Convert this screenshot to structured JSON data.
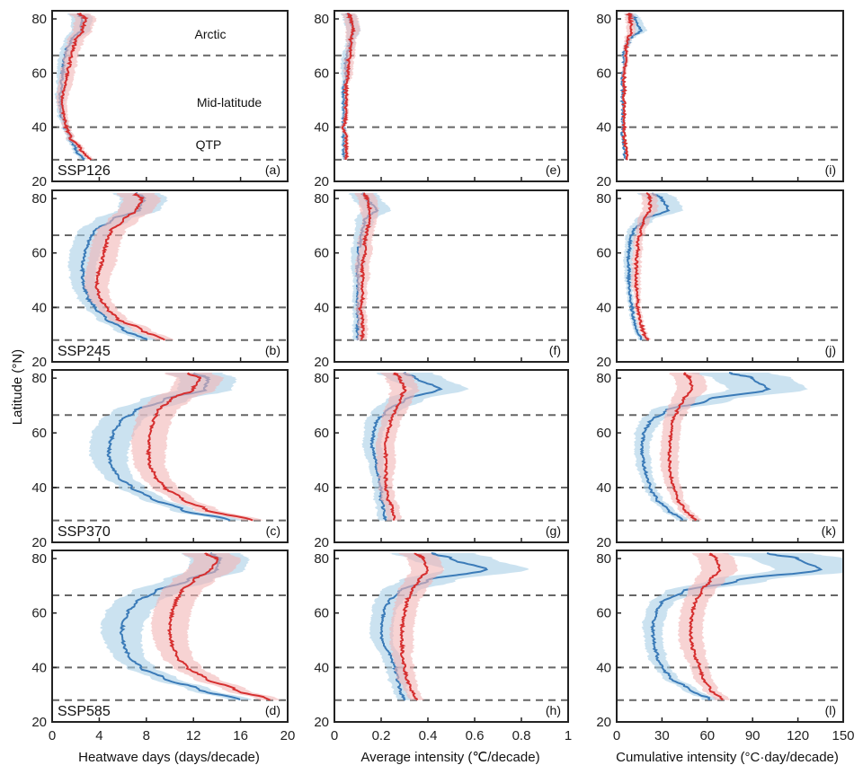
{
  "chart_data": {
    "type": "line",
    "ylabel": "Latitude (°N)",
    "ylim": [
      20,
      83
    ],
    "yticks": [
      20,
      40,
      60,
      80
    ],
    "reference_lines_lat": [
      28,
      40,
      66.5
    ],
    "region_labels": [
      "Arctic",
      "Mid-latitude",
      "QTP"
    ],
    "colors": {
      "red_line": "#d62f2f",
      "red_band": "#f2b6b6",
      "blue_line": "#3b7bb8",
      "blue_band": "#a9cfe6",
      "ref_line": "#666666"
    },
    "columns": [
      {
        "xlabel": "Heatwave days (days/decade)",
        "xlim": [
          0,
          20
        ],
        "xticks": [
          "0",
          "4",
          "8",
          "12",
          "16",
          "20"
        ],
        "tick_values": [
          0,
          4,
          8,
          12,
          16,
          20
        ]
      },
      {
        "xlabel": "Average intensity (℃/decade)",
        "xlim": [
          0,
          1
        ],
        "xticks": [
          "0",
          "0.2",
          "0.4",
          "0.6",
          "0.8",
          "1"
        ],
        "tick_values": [
          0,
          0.2,
          0.4,
          0.6,
          0.8,
          1
        ]
      },
      {
        "xlabel": "Cumulative intensity (°C·day/decade)",
        "xlim": [
          0,
          150
        ],
        "xticks": [
          "0",
          "30",
          "60",
          "90",
          "120",
          "150"
        ],
        "tick_values": [
          0,
          30,
          60,
          90,
          120,
          150
        ]
      }
    ],
    "rows": [
      "SSP126",
      "SSP245",
      "SSP370",
      "SSP585"
    ],
    "panel_labels": [
      [
        "(a)",
        "(e)",
        "(i)"
      ],
      [
        "(b)",
        "(f)",
        "(j)"
      ],
      [
        "(c)",
        "(g)",
        "(k)"
      ],
      [
        "(d)",
        "(h)",
        "(l)"
      ]
    ],
    "series": [
      {
        "scenario": "SSP126",
        "variable": "heatwave_days",
        "lat": [
          28,
          32,
          36,
          40,
          44,
          48,
          52,
          56,
          60,
          64,
          68,
          72,
          76,
          80,
          82
        ],
        "red": [
          3.2,
          2.4,
          1.6,
          1.2,
          1.0,
          0.8,
          0.9,
          1.1,
          1.3,
          1.5,
          1.7,
          2.0,
          2.6,
          2.8,
          2.4
        ],
        "red_spread": [
          0.3,
          0.3,
          0.3,
          0.3,
          0.3,
          0.4,
          0.5,
          0.6,
          0.6,
          0.6,
          0.6,
          0.7,
          0.8,
          0.9,
          0.9
        ],
        "blue": [
          2.6,
          2.0,
          1.5,
          1.1,
          0.8,
          0.7,
          0.7,
          0.8,
          0.9,
          1.0,
          1.2,
          1.6,
          2.4,
          2.6,
          2.2
        ],
        "blue_spread": [
          0.3,
          0.3,
          0.3,
          0.3,
          0.3,
          0.3,
          0.4,
          0.4,
          0.5,
          0.5,
          0.5,
          0.6,
          0.8,
          0.9,
          0.9
        ]
      },
      {
        "scenario": "SSP126",
        "variable": "average_intensity",
        "lat": [
          28,
          32,
          36,
          40,
          44,
          48,
          52,
          56,
          60,
          64,
          68,
          72,
          76,
          80,
          82
        ],
        "red": [
          0.05,
          0.05,
          0.05,
          0.04,
          0.05,
          0.05,
          0.05,
          0.05,
          0.06,
          0.06,
          0.07,
          0.07,
          0.08,
          0.07,
          0.06
        ],
        "red_spread": [
          0.01,
          0.01,
          0.01,
          0.01,
          0.01,
          0.01,
          0.01,
          0.01,
          0.02,
          0.02,
          0.02,
          0.02,
          0.03,
          0.03,
          0.03
        ],
        "blue": [
          0.04,
          0.04,
          0.04,
          0.04,
          0.04,
          0.04,
          0.04,
          0.04,
          0.05,
          0.05,
          0.06,
          0.07,
          0.08,
          0.07,
          0.06
        ],
        "blue_spread": [
          0.01,
          0.01,
          0.01,
          0.01,
          0.01,
          0.01,
          0.01,
          0.01,
          0.02,
          0.02,
          0.02,
          0.02,
          0.03,
          0.03,
          0.03
        ]
      },
      {
        "scenario": "SSP126",
        "variable": "cumulative_intensity",
        "lat": [
          28,
          32,
          36,
          40,
          44,
          48,
          52,
          56,
          60,
          64,
          68,
          72,
          76,
          80,
          82
        ],
        "red": [
          7,
          6,
          5,
          5,
          5,
          5,
          5,
          5,
          5,
          6,
          6,
          7,
          10,
          9,
          8
        ],
        "red_spread": [
          1,
          1,
          1,
          1,
          1,
          1,
          1,
          1,
          1.5,
          1.5,
          1.5,
          2,
          3,
          3,
          3
        ],
        "blue": [
          6,
          5,
          4,
          4,
          4,
          4,
          4,
          4,
          4,
          5,
          5,
          8,
          16,
          12,
          9
        ],
        "blue_spread": [
          1,
          1,
          1,
          1,
          1,
          1,
          1,
          1,
          1,
          1,
          1.5,
          2,
          4,
          4,
          4
        ]
      },
      {
        "scenario": "SSP245",
        "variable": "heatwave_days",
        "lat": [
          28,
          32,
          36,
          40,
          44,
          48,
          52,
          56,
          60,
          64,
          68,
          72,
          76,
          80,
          82
        ],
        "red": [
          9.5,
          7.5,
          5.5,
          4.6,
          4.0,
          3.8,
          3.9,
          4.2,
          4.4,
          4.6,
          5.0,
          6.0,
          7.2,
          7.6,
          7.0
        ],
        "red_spread": [
          0.8,
          0.8,
          0.8,
          0.8,
          0.9,
          1.0,
          1.1,
          1.2,
          1.2,
          1.2,
          1.2,
          1.3,
          1.5,
          1.6,
          1.6
        ],
        "blue": [
          8.0,
          6.0,
          4.5,
          3.6,
          3.0,
          2.7,
          2.6,
          2.6,
          2.8,
          3.1,
          3.6,
          5.0,
          7.4,
          7.8,
          7.2
        ],
        "blue_spread": [
          0.8,
          0.8,
          0.8,
          0.8,
          0.9,
          1.0,
          1.1,
          1.2,
          1.3,
          1.3,
          1.4,
          1.5,
          1.8,
          2.0,
          2.0
        ]
      },
      {
        "scenario": "SSP245",
        "variable": "average_intensity",
        "lat": [
          28,
          32,
          36,
          40,
          44,
          48,
          52,
          56,
          60,
          64,
          68,
          72,
          76,
          80,
          82
        ],
        "red": [
          0.12,
          0.12,
          0.12,
          0.11,
          0.12,
          0.12,
          0.12,
          0.12,
          0.13,
          0.13,
          0.14,
          0.15,
          0.15,
          0.14,
          0.13
        ],
        "red_spread": [
          0.02,
          0.02,
          0.02,
          0.02,
          0.02,
          0.02,
          0.03,
          0.03,
          0.03,
          0.03,
          0.03,
          0.03,
          0.04,
          0.04,
          0.04
        ],
        "blue": [
          0.1,
          0.1,
          0.1,
          0.1,
          0.1,
          0.1,
          0.1,
          0.1,
          0.1,
          0.11,
          0.12,
          0.13,
          0.18,
          0.14,
          0.12
        ],
        "blue_spread": [
          0.02,
          0.02,
          0.02,
          0.02,
          0.02,
          0.02,
          0.02,
          0.03,
          0.03,
          0.03,
          0.03,
          0.04,
          0.06,
          0.06,
          0.06
        ]
      },
      {
        "scenario": "SSP245",
        "variable": "cumulative_intensity",
        "lat": [
          28,
          32,
          36,
          40,
          44,
          48,
          52,
          56,
          60,
          64,
          68,
          72,
          76,
          80,
          82
        ],
        "red": [
          20,
          17,
          15,
          14,
          14,
          13,
          13,
          13,
          14,
          14,
          16,
          18,
          22,
          22,
          20
        ],
        "red_spread": [
          2,
          2,
          2,
          2,
          2,
          3,
          3,
          3,
          3,
          3,
          3,
          4,
          5,
          5,
          5
        ],
        "blue": [
          16,
          13,
          11,
          10,
          9,
          8,
          8,
          8,
          8,
          9,
          11,
          18,
          34,
          30,
          24
        ],
        "blue_spread": [
          2,
          2,
          2,
          2,
          2,
          2,
          3,
          3,
          3,
          3,
          4,
          6,
          10,
          10,
          10
        ]
      },
      {
        "scenario": "SSP370",
        "variable": "heatwave_days",
        "lat": [
          28,
          32,
          36,
          40,
          44,
          48,
          52,
          56,
          60,
          64,
          68,
          72,
          76,
          80,
          82
        ],
        "red": [
          17.0,
          13.0,
          11.0,
          9.6,
          8.8,
          8.3,
          8.2,
          8.2,
          8.3,
          8.6,
          9.0,
          10.0,
          12.0,
          12.5,
          11.5
        ],
        "red_spread": [
          0.9,
          1.0,
          1.0,
          1.1,
          1.2,
          1.3,
          1.4,
          1.5,
          1.5,
          1.5,
          1.6,
          1.7,
          1.9,
          2.0,
          2.0
        ],
        "blue": [
          15.0,
          11.0,
          8.5,
          6.8,
          5.6,
          5.0,
          4.8,
          4.9,
          5.2,
          5.8,
          7.0,
          9.5,
          13.0,
          13.2,
          12.0
        ],
        "blue_spread": [
          1.0,
          1.0,
          1.0,
          1.1,
          1.2,
          1.4,
          1.6,
          1.7,
          1.8,
          1.8,
          1.9,
          2.0,
          2.3,
          2.4,
          2.4
        ]
      },
      {
        "scenario": "SSP370",
        "variable": "average_intensity",
        "lat": [
          28,
          32,
          36,
          40,
          44,
          48,
          52,
          56,
          60,
          64,
          68,
          72,
          76,
          80,
          82
        ],
        "red": [
          0.26,
          0.25,
          0.23,
          0.22,
          0.22,
          0.22,
          0.22,
          0.22,
          0.23,
          0.24,
          0.26,
          0.28,
          0.3,
          0.28,
          0.26
        ],
        "red_spread": [
          0.03,
          0.03,
          0.03,
          0.03,
          0.03,
          0.04,
          0.04,
          0.04,
          0.04,
          0.04,
          0.05,
          0.05,
          0.06,
          0.06,
          0.06
        ],
        "blue": [
          0.22,
          0.21,
          0.2,
          0.2,
          0.19,
          0.18,
          0.17,
          0.16,
          0.17,
          0.18,
          0.22,
          0.3,
          0.45,
          0.35,
          0.3
        ],
        "blue_spread": [
          0.03,
          0.03,
          0.03,
          0.03,
          0.03,
          0.03,
          0.04,
          0.04,
          0.04,
          0.05,
          0.06,
          0.08,
          0.12,
          0.12,
          0.12
        ]
      },
      {
        "scenario": "SSP370",
        "variable": "cumulative_intensity",
        "lat": [
          28,
          32,
          36,
          40,
          44,
          48,
          52,
          56,
          60,
          64,
          68,
          72,
          76,
          80,
          82
        ],
        "red": [
          52,
          45,
          40,
          38,
          36,
          35,
          35,
          35,
          36,
          37,
          40,
          44,
          50,
          48,
          45
        ],
        "red_spread": [
          4,
          4,
          4,
          5,
          5,
          6,
          6,
          6,
          6,
          6,
          7,
          8,
          10,
          10,
          10
        ],
        "blue": [
          44,
          34,
          26,
          22,
          20,
          18,
          17,
          17,
          18,
          22,
          32,
          60,
          100,
          90,
          75
        ],
        "blue_spread": [
          4,
          4,
          4,
          4,
          4,
          5,
          5,
          5,
          6,
          7,
          10,
          16,
          26,
          26,
          26
        ]
      },
      {
        "scenario": "SSP585",
        "variable": "heatwave_days",
        "lat": [
          28,
          32,
          36,
          40,
          44,
          48,
          52,
          56,
          60,
          64,
          68,
          72,
          76,
          80,
          82
        ],
        "red": [
          18.5,
          15.5,
          13.0,
          11.5,
          10.6,
          10.2,
          10.0,
          10.0,
          10.2,
          10.5,
          11.0,
          12.0,
          13.5,
          14.0,
          13.0
        ],
        "red_spread": [
          0.9,
          1.0,
          1.1,
          1.2,
          1.3,
          1.4,
          1.5,
          1.6,
          1.6,
          1.6,
          1.7,
          1.8,
          2.0,
          2.0,
          2.0
        ],
        "blue": [
          16.0,
          12.5,
          9.5,
          7.5,
          6.5,
          6.1,
          5.9,
          6.0,
          6.4,
          7.2,
          8.8,
          11.5,
          14.0,
          14.2,
          13.5
        ],
        "blue_spread": [
          1.0,
          1.0,
          1.1,
          1.2,
          1.3,
          1.5,
          1.7,
          1.8,
          1.9,
          1.9,
          2.0,
          2.1,
          2.4,
          2.5,
          2.5
        ]
      },
      {
        "scenario": "SSP585",
        "variable": "average_intensity",
        "lat": [
          28,
          32,
          36,
          40,
          44,
          48,
          52,
          56,
          60,
          64,
          68,
          72,
          76,
          80,
          82
        ],
        "red": [
          0.35,
          0.33,
          0.31,
          0.3,
          0.29,
          0.29,
          0.29,
          0.29,
          0.3,
          0.31,
          0.33,
          0.36,
          0.4,
          0.38,
          0.35
        ],
        "red_spread": [
          0.03,
          0.03,
          0.04,
          0.04,
          0.04,
          0.05,
          0.05,
          0.05,
          0.05,
          0.05,
          0.06,
          0.06,
          0.07,
          0.07,
          0.07
        ],
        "blue": [
          0.3,
          0.28,
          0.27,
          0.26,
          0.24,
          0.21,
          0.2,
          0.2,
          0.21,
          0.23,
          0.28,
          0.4,
          0.65,
          0.5,
          0.42
        ],
        "blue_spread": [
          0.03,
          0.03,
          0.04,
          0.04,
          0.04,
          0.04,
          0.05,
          0.05,
          0.05,
          0.06,
          0.08,
          0.12,
          0.18,
          0.18,
          0.18
        ]
      },
      {
        "scenario": "SSP585",
        "variable": "cumulative_intensity",
        "lat": [
          28,
          32,
          36,
          40,
          44,
          48,
          52,
          56,
          60,
          64,
          68,
          72,
          76,
          80,
          82
        ],
        "red": [
          70,
          62,
          57,
          55,
          52,
          50,
          49,
          49,
          50,
          52,
          56,
          62,
          68,
          66,
          62
        ],
        "red_spread": [
          5,
          5,
          6,
          6,
          7,
          8,
          8,
          8,
          8,
          8,
          9,
          10,
          12,
          12,
          12
        ],
        "blue": [
          62,
          48,
          36,
          30,
          27,
          25,
          24,
          24,
          26,
          30,
          44,
          80,
          135,
          120,
          100
        ],
        "blue_spread": [
          5,
          5,
          5,
          5,
          6,
          6,
          6,
          7,
          7,
          8,
          12,
          20,
          30,
          30,
          30
        ]
      }
    ]
  }
}
